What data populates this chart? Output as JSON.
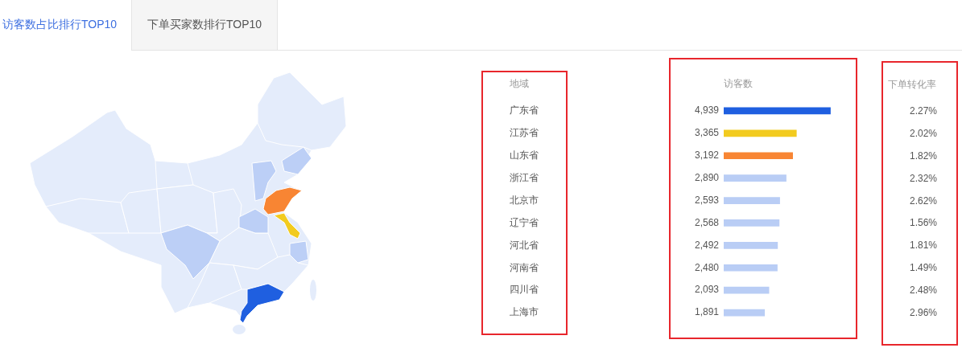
{
  "chart_data": [
    {
      "type": "other",
      "title": "访客数占比排行TOP10",
      "annotations": [
        "下单买家数排行TOP10"
      ]
    },
    {
      "type": "bar",
      "orientation": "horizontal",
      "ylabel": "地域",
      "xlabel": "访客数",
      "tick_labels": "y",
      "categories": [
        "广东省",
        "江苏省",
        "山东省",
        "浙江省",
        "北京市",
        "辽宁省",
        "河北省",
        "河南省",
        "四川省",
        "上海市"
      ],
      "values": [
        4939,
        3365,
        3192,
        2890,
        2593,
        2568,
        2492,
        2480,
        2093,
        1891
      ],
      "value_labels": [
        "4,939",
        "3,365",
        "3,192",
        "2,890",
        "2,593",
        "2,568",
        "2,492",
        "2,480",
        "2,093",
        "1,891"
      ],
      "colors": [
        "#1f5fe0",
        "#f2cb1f",
        "#f88533",
        "#b9cdf5",
        "#b9cdf5",
        "#b9cdf5",
        "#b9cdf5",
        "#b9cdf5",
        "#b9cdf5",
        "#b9cdf5"
      ]
    },
    {
      "type": "other",
      "title": "下单转化率",
      "values": [
        2.27,
        2.02,
        1.82,
        2.32,
        2.62,
        1.56,
        1.81,
        1.49,
        2.48,
        2.96
      ],
      "value_labels": [
        "2.27%",
        "2.02%",
        "1.82%",
        "2.32%",
        "2.62%",
        "1.56%",
        "1.81%",
        "1.49%",
        "2.48%",
        "2.96%"
      ]
    }
  ]
}
